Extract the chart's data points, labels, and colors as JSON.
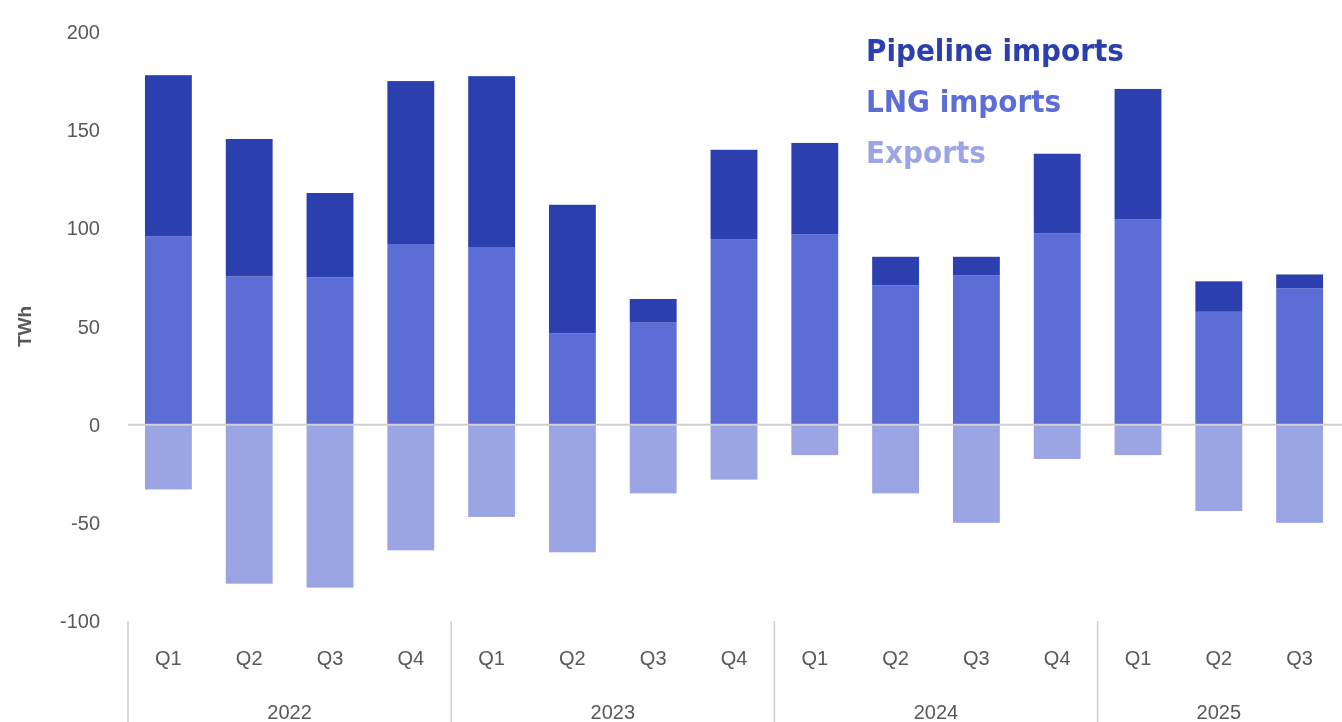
{
  "chart_data": {
    "type": "bar",
    "stacked": true,
    "ylabel": "TWh",
    "categories": [
      "Q1",
      "Q2",
      "Q3",
      "Q4",
      "Q1",
      "Q2",
      "Q3",
      "Q4",
      "Q1",
      "Q2",
      "Q3",
      "Q4",
      "Q1",
      "Q2",
      "Q3"
    ],
    "annotations": [
      "2022",
      "2023",
      "2024",
      "2025"
    ],
    "series": [
      {
        "name": "LNG imports",
        "color": "#5c6dd5",
        "values": [
          96,
          75.5,
          75,
          92,
          90.5,
          46.5,
          52,
          94.5,
          97,
          71,
          76,
          97.5,
          104.5,
          57.5,
          69.5
        ]
      },
      {
        "name": "Pipeline imports",
        "color": "#2b3fae",
        "values": [
          82,
          70,
          43,
          83,
          87,
          65.5,
          12,
          45.5,
          46.5,
          14.5,
          9.5,
          40.5,
          66.5,
          15.5,
          7
        ]
      },
      {
        "name": "Exports",
        "color": "#9ba5e4",
        "values": [
          -33,
          -81,
          -83,
          -64,
          -47,
          -65,
          -35,
          -28,
          -15.5,
          -35,
          -50,
          -17.5,
          -15.5,
          -44,
          -50
        ]
      }
    ],
    "ylim": [
      -100,
      200
    ],
    "yticks": [
      -100,
      -50,
      0,
      50,
      100,
      150,
      200
    ],
    "legend": "top right"
  }
}
